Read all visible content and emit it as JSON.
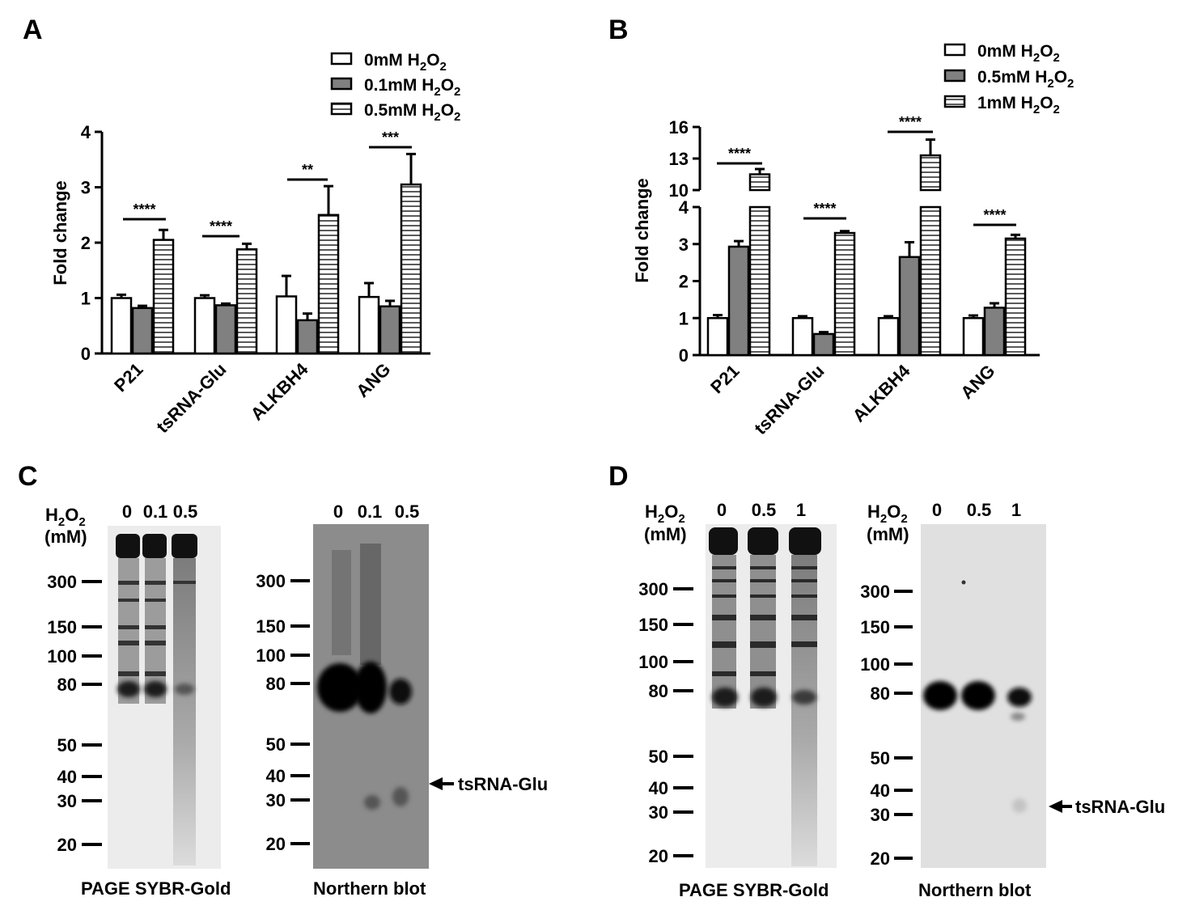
{
  "chart_data": [
    {
      "type": "bar",
      "panel": "A",
      "ylabel": "Fold change",
      "ylim": [
        0,
        4
      ],
      "yticks": [
        0,
        1,
        2,
        3,
        4
      ],
      "categories": [
        "P21",
        "tsRNA-Glu",
        "ALKBH4",
        "ANG"
      ],
      "series": [
        {
          "name": "0mM H2O2",
          "values": [
            1.0,
            1.0,
            1.03,
            1.02
          ],
          "errors": [
            0.06,
            0.05,
            0.37,
            0.25
          ]
        },
        {
          "name": "0.1mM H2O2",
          "values": [
            0.82,
            0.87,
            0.6,
            0.85
          ],
          "errors": [
            0.04,
            0.03,
            0.12,
            0.1
          ]
        },
        {
          "name": "0.5mM H2O2",
          "values": [
            2.05,
            1.88,
            2.5,
            3.05
          ],
          "errors": [
            0.18,
            0.1,
            0.52,
            0.55
          ]
        }
      ],
      "significance": [
        "****",
        "****",
        "**",
        "***"
      ]
    },
    {
      "type": "bar",
      "panel": "B",
      "ylabel": "Fold change",
      "broken_axis": true,
      "ylim_lower": [
        0,
        4
      ],
      "ylim_upper": [
        10,
        16
      ],
      "yticks": [
        0,
        1,
        2,
        3,
        4,
        10,
        13,
        16
      ],
      "categories": [
        "P21",
        "tsRNA-Glu",
        "ALKBH4",
        "ANG"
      ],
      "series": [
        {
          "name": "0mM H2O2",
          "values": [
            1.0,
            1.0,
            1.0,
            1.0
          ],
          "errors": [
            0.08,
            0.05,
            0.05,
            0.07
          ]
        },
        {
          "name": "0.5mM H2O2",
          "values": [
            2.93,
            0.57,
            2.65,
            1.28
          ],
          "errors": [
            0.15,
            0.05,
            0.4,
            0.12
          ]
        },
        {
          "name": "1mM H2O2",
          "values": [
            11.5,
            3.3,
            13.3,
            3.15
          ],
          "errors": [
            0.5,
            0.05,
            1.5,
            0.1
          ]
        }
      ],
      "significance": [
        "****",
        "****",
        "****",
        "****"
      ]
    }
  ],
  "panels": {
    "A": {
      "letter": "A"
    },
    "B": {
      "letter": "B"
    },
    "C": {
      "letter": "C"
    },
    "D": {
      "letter": "D"
    }
  },
  "legend_text": {
    "A": [
      {
        "pre": "0mM H",
        "sub1": "2",
        "mid": "O",
        "sub2": "2"
      },
      {
        "pre": "0.1mM H",
        "sub1": "2",
        "mid": "O",
        "sub2": "2"
      },
      {
        "pre": "0.5mM H",
        "sub1": "2",
        "mid": "O",
        "sub2": "2"
      }
    ],
    "B": [
      {
        "pre": "0mM H",
        "sub1": "2",
        "mid": "O",
        "sub2": "2"
      },
      {
        "pre": "0.5mM H",
        "sub1": "2",
        "mid": "O",
        "sub2": "2"
      },
      {
        "pre": "1mM H",
        "sub1": "2",
        "mid": "O",
        "sub2": "2"
      }
    ]
  },
  "gels": {
    "h2o2_label": {
      "pre": "H",
      "sub1": "2",
      "mid": "O",
      "sub2": "2"
    },
    "unit_label": "(mM)",
    "C": {
      "sybr_lanes": [
        "0",
        "0.1",
        "0.5"
      ],
      "northern_lanes": [
        "0",
        "0.1",
        "0.5"
      ],
      "markers": [
        "300",
        "150",
        "100",
        "80",
        "50",
        "40",
        "30",
        "20"
      ],
      "sybr_caption": "PAGE SYBR-Gold",
      "northern_caption": "Northern blot",
      "arrow_label": "tsRNA-Glu"
    },
    "D": {
      "sybr_lanes": [
        "0",
        "0.5",
        "1"
      ],
      "northern_lanes": [
        "0",
        "0.5",
        "1"
      ],
      "markers": [
        "300",
        "150",
        "100",
        "80",
        "50",
        "40",
        "30",
        "20"
      ],
      "sybr_caption": "PAGE SYBR-Gold",
      "northern_caption": "Northern blot",
      "arrow_label": "tsRNA-Glu"
    }
  },
  "colors": {
    "bar_white": "#ffffff",
    "bar_gray": "#808080",
    "stroke": "#000000",
    "gel_sybr_bg": "#ececec",
    "gel_northern_c_bg": "#8c8c8c",
    "gel_northern_d_bg": "#e0e0e0"
  }
}
